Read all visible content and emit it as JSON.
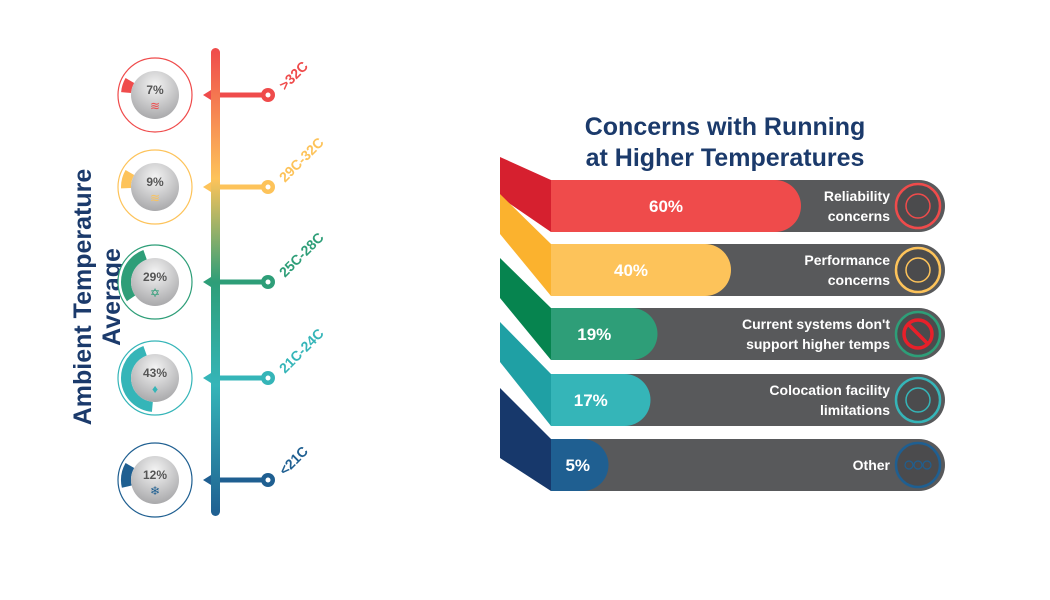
{
  "chart_data": [
    {
      "type": "bar",
      "ylabel": "Ambient Temperature Average",
      "categories": [
        ">32C",
        "29C-32C",
        "25C-28C",
        "21C-24C",
        "<21C"
      ],
      "values": [
        7,
        9,
        29,
        43,
        12
      ],
      "labels": [
        "7%",
        "9%",
        "29%",
        "43%",
        "12%"
      ],
      "colors": [
        "#ef4b4b",
        "#fdc35a",
        "#2e9e78",
        "#35b5b8",
        "#1f5f91"
      ],
      "icons": [
        "heat-waves-icon",
        "heat-waves-icon",
        "sun-icon",
        "water-drop-icon",
        "snowflake-icon"
      ]
    },
    {
      "type": "bar",
      "title": "Concerns with Running at Higher Temperatures",
      "title_lines": [
        "Concerns with Running",
        "at Higher Temperatures"
      ],
      "categories": [
        [
          "Reliability",
          "concerns"
        ],
        [
          "Performance",
          "concerns"
        ],
        [
          "Current systems don't",
          "support higher temps"
        ],
        [
          "Colocation facility",
          "limitations"
        ],
        [
          "Other"
        ]
      ],
      "values": [
        60,
        40,
        19,
        17,
        5
      ],
      "labels": [
        "60%",
        "40%",
        "19%",
        "17%",
        "5%"
      ],
      "colors": [
        "#ef4b4b",
        "#fdc35a",
        "#2e9e78",
        "#35b5b8",
        "#1f5f91"
      ],
      "side_colors": [
        "#d6202f",
        "#fbb22e",
        "#06844f",
        "#1fa0a4",
        "#17386b"
      ],
      "icons": [
        "handshake-icon",
        "speedometer-check-icon",
        "no-server-icon",
        "factory-thermometer-icon",
        "more-dots-icon"
      ]
    }
  ]
}
